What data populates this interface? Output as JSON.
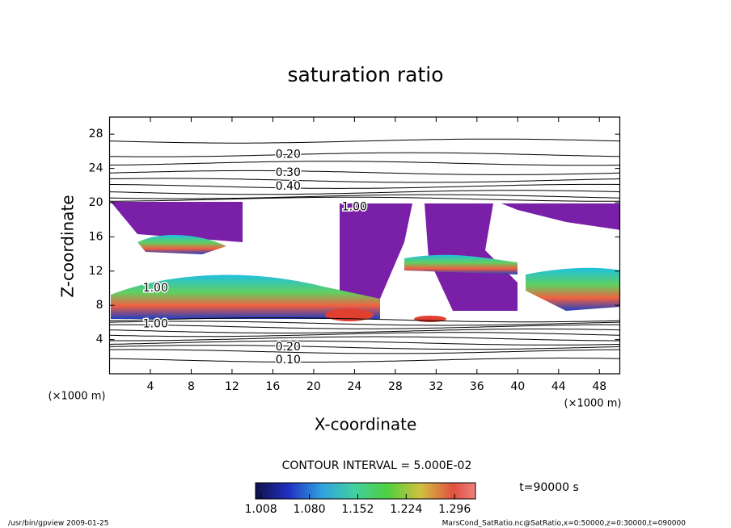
{
  "chart_data": {
    "type": "contour",
    "title": "saturation ratio",
    "xlabel": "X-coordinate",
    "ylabel": "Z-coordinate",
    "xunit_left": "(×1000 m)",
    "xunit_right": "(×1000 m)",
    "xlim": [
      0,
      50
    ],
    "ylim": [
      0,
      30
    ],
    "xticks": [
      4,
      8,
      12,
      16,
      20,
      24,
      28,
      32,
      36,
      40,
      44,
      48
    ],
    "yticks": [
      4,
      8,
      12,
      16,
      20,
      24,
      28
    ],
    "contours": [
      {
        "z": 27.2
      },
      {
        "z": 25.6
      },
      {
        "z": 24.6
      },
      {
        "z": 23.5
      },
      {
        "z": 22.6
      },
      {
        "z": 21.9
      },
      {
        "z": 21.2
      },
      {
        "z": 20.7
      },
      {
        "z": 20.4
      },
      {
        "z": 6.3
      },
      {
        "z": 5.9
      },
      {
        "z": 5.5
      },
      {
        "z": 5.0
      },
      {
        "z": 4.6
      },
      {
        "z": 4.1
      },
      {
        "z": 3.6
      },
      {
        "z": 3.1
      },
      {
        "z": 2.6
      },
      {
        "z": 1.6
      }
    ],
    "contour_labels": [
      {
        "text": "0.20",
        "x": 17.5,
        "z": 25.6
      },
      {
        "text": "0.30",
        "x": 17.5,
        "z": 23.5
      },
      {
        "text": "0.40",
        "x": 17.5,
        "z": 21.9
      },
      {
        "text": "0.10",
        "x": 17.5,
        "z": 1.6
      },
      {
        "text": "0.20",
        "x": 17.5,
        "z": 3.1
      },
      {
        "text": "1.00",
        "x": 4.5,
        "z": 5.8
      },
      {
        "text": "1.00",
        "x": 4.5,
        "z": 10.0
      },
      {
        "text": "1.00",
        "x": 24,
        "z": 19.5
      }
    ],
    "annotation": "CONTOUR INTERVAL = 5.000E-02",
    "time_label": "t=90000 s",
    "colorbar": {
      "clim": [
        1.0,
        1.327
      ],
      "ticks": [
        1.008,
        {
          "value": 1.08,
          "label": "1.080"
        },
        1.152,
        1.224,
        1.296
      ]
    },
    "footer_left": "/usr/bin/gpview   2009-01-25",
    "footer_right": "MarsCond_SatRatio.nc@SatRatio,x=0:50000,z=0:30000,t=090000"
  }
}
